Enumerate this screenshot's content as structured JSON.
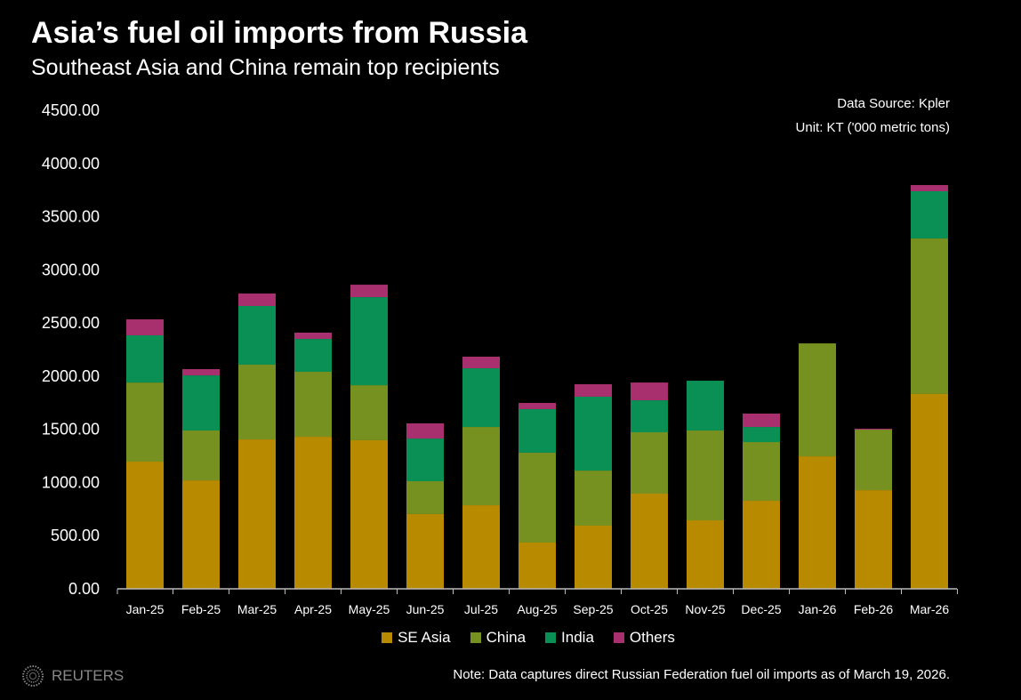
{
  "title": "Asia’s fuel oil imports from Russia",
  "subtitle": "Southeast Asia and China remain top recipients",
  "source": "Data Source: Kpler",
  "unit": "Unit: KT ('000 metric tons)",
  "note": "Note: Data captures direct Russian Federation fuel oil imports as of March 19, 2026.",
  "logo_text": "REUTERS",
  "chart_data": {
    "type": "bar",
    "stacked": true,
    "categories": [
      "Jan-25",
      "Feb-25",
      "Mar-25",
      "Apr-25",
      "May-25",
      "Jun-25",
      "Jul-25",
      "Aug-25",
      "Sep-25",
      "Oct-25",
      "Nov-25",
      "Dec-25",
      "Jan-26",
      "Feb-26",
      "Mar-26"
    ],
    "series": [
      {
        "name": "SE Asia",
        "color": "#B88A00",
        "values": [
          1196,
          1020,
          1405,
          1430,
          1397,
          703,
          786,
          435,
          594,
          895,
          644,
          828,
          1246,
          928,
          1832
        ]
      },
      {
        "name": "China",
        "color": "#76911F",
        "values": [
          744,
          469,
          703,
          611,
          518,
          309,
          736,
          845,
          518,
          577,
          845,
          552,
          1062,
          569,
          1463
        ]
      },
      {
        "name": "India",
        "color": "#0A8F55",
        "values": [
          444,
          518,
          552,
          309,
          828,
          401,
          552,
          410,
          695,
          301,
          468,
          142,
          0,
          0,
          444
        ]
      },
      {
        "name": "Others",
        "color": "#A8306E",
        "values": [
          150,
          59,
          117,
          59,
          117,
          143,
          109,
          58,
          117,
          167,
          0,
          126,
          0,
          9,
          58
        ]
      }
    ],
    "yticks": [
      "0.00",
      "500.00",
      "1000.00",
      "1500.00",
      "2000.00",
      "2500.00",
      "3000.00",
      "3500.00",
      "4000.00",
      "4500.00"
    ],
    "ylim": [
      0,
      4500
    ],
    "grid": false,
    "legend": "bottom"
  }
}
